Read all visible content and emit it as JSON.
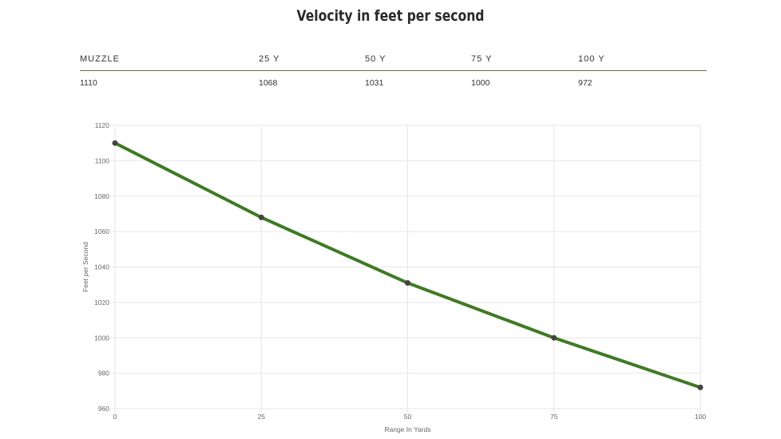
{
  "title": "Velocity in feet per second",
  "table": {
    "headers": [
      "MUZZLE",
      "25 Y",
      "50 Y",
      "75 Y",
      "100 Y"
    ],
    "values": [
      "1110",
      "1068",
      "1031",
      "1000",
      "972"
    ]
  },
  "colors": {
    "line": "#3f7a26",
    "point": "#444444",
    "rule": "#6b6b3a",
    "grid": "#e6e6e6"
  },
  "chart_data": {
    "type": "line",
    "title": "Velocity in feet per second",
    "xlabel": "Range In Yards",
    "ylabel": "Feet per Second",
    "x": [
      0,
      25,
      50,
      75,
      100
    ],
    "series": [
      {
        "name": "Velocity",
        "values": [
          1110,
          1068,
          1031,
          1000,
          972
        ]
      }
    ],
    "xlim": [
      0,
      100
    ],
    "ylim": [
      960,
      1120
    ],
    "xticks": [
      0,
      25,
      50,
      75,
      100
    ],
    "yticks": [
      960,
      980,
      1000,
      1020,
      1040,
      1060,
      1080,
      1100,
      1120
    ],
    "grid": true,
    "legend": "none"
  }
}
